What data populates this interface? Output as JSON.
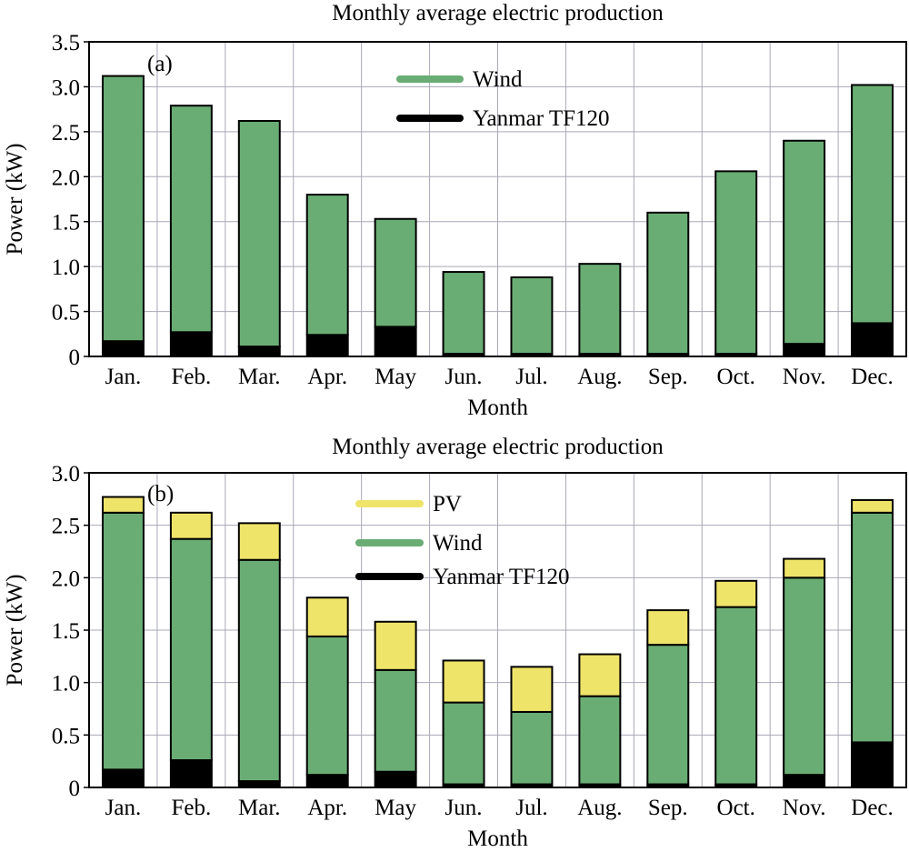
{
  "chart_data": [
    {
      "type": "bar",
      "stacked": true,
      "panel_label": "(a)",
      "title": "Monthly average electric production",
      "xlabel": "Month",
      "ylabel": "Power (kW)",
      "ylim": [
        0,
        3.5
      ],
      "yticks": [
        0,
        0.5,
        1.0,
        1.5,
        2.0,
        2.5,
        3.0,
        3.5
      ],
      "ytick_labels": [
        "0",
        "0.5",
        "1.0",
        "1.5",
        "2.0",
        "2.5",
        "3.0",
        "3.5"
      ],
      "grid": true,
      "legend_position": "top-center",
      "categories": [
        "Jan.",
        "Feb.",
        "Mar.",
        "Apr.",
        "May",
        "Jun.",
        "Jul.",
        "Aug.",
        "Sep.",
        "Oct.",
        "Nov.",
        "Dec."
      ],
      "series": [
        {
          "name": "Yanmar TF120",
          "color": "#000000",
          "values": [
            0.17,
            0.27,
            0.11,
            0.24,
            0.33,
            0.03,
            0.03,
            0.03,
            0.03,
            0.03,
            0.14,
            0.37
          ]
        },
        {
          "name": "Wind",
          "color": "#6aad74",
          "values": [
            2.95,
            2.52,
            2.51,
            1.56,
            1.2,
            0.91,
            0.85,
            1.0,
            1.57,
            2.03,
            2.26,
            2.65
          ]
        }
      ],
      "legend_order": [
        "Wind",
        "Yanmar TF120"
      ]
    },
    {
      "type": "bar",
      "stacked": true,
      "panel_label": "(b)",
      "title": "Monthly average electric production",
      "xlabel": "Month",
      "ylabel": "Power (kW)",
      "ylim": [
        0,
        3.0
      ],
      "yticks": [
        0,
        0.5,
        1.0,
        1.5,
        2.0,
        2.5,
        3.0
      ],
      "ytick_labels": [
        "0",
        "0.5",
        "1.0",
        "1.5",
        "2.0",
        "2.5",
        "3.0"
      ],
      "grid": true,
      "legend_position": "top-center",
      "categories": [
        "Jan.",
        "Feb.",
        "Mar.",
        "Apr.",
        "May",
        "Jun.",
        "Jul.",
        "Aug.",
        "Sep.",
        "Oct.",
        "Nov.",
        "Dec."
      ],
      "series": [
        {
          "name": "Yanmar TF120",
          "color": "#000000",
          "values": [
            0.17,
            0.26,
            0.06,
            0.12,
            0.15,
            0.03,
            0.03,
            0.03,
            0.03,
            0.03,
            0.12,
            0.43
          ]
        },
        {
          "name": "Wind",
          "color": "#6aad74",
          "values": [
            2.45,
            2.11,
            2.11,
            1.32,
            0.97,
            0.78,
            0.69,
            0.84,
            1.33,
            1.69,
            1.88,
            2.19
          ]
        },
        {
          "name": "PV",
          "color": "#efe46a",
          "values": [
            0.15,
            0.25,
            0.35,
            0.37,
            0.46,
            0.4,
            0.43,
            0.4,
            0.33,
            0.25,
            0.18,
            0.12
          ]
        }
      ],
      "legend_order": [
        "PV",
        "Wind",
        "Yanmar TF120"
      ]
    }
  ]
}
